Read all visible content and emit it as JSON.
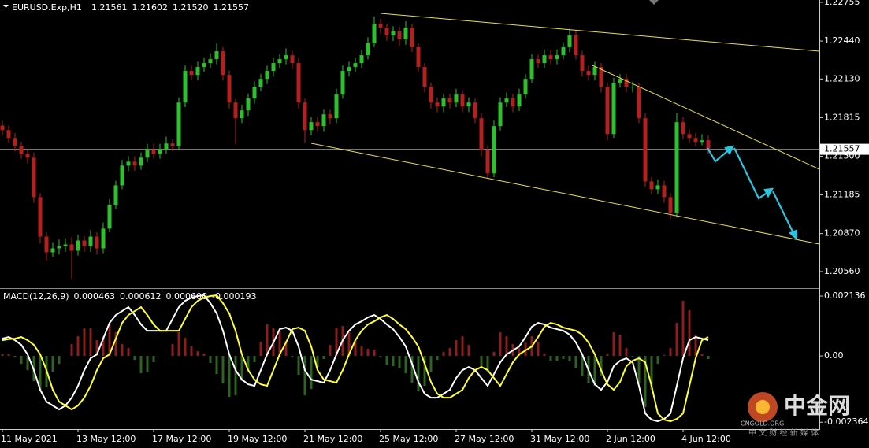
{
  "chart_data": [
    {
      "type": "candlestick",
      "title": "EURUSD.Exp,H1",
      "header_values": [
        "1.21561",
        "1.21602",
        "1.21520",
        "1.21557"
      ],
      "up_color": "#2fbf2f",
      "down_color": "#b32020",
      "current_price": {
        "value": 1.21557,
        "label": "1.21557"
      },
      "ylim": [
        1.20444,
        1.22774
      ],
      "yticks": [
        1.22755,
        {
          "value": 1.2244,
          "label": "1.22440"
        },
        {
          "value": 1.2213,
          "label": "1.22130"
        },
        1.21815,
        {
          "value": 1.215,
          "label": "1.21500"
        },
        1.21185,
        {
          "value": 1.2087,
          "label": "1.20870"
        },
        {
          "value": 1.2056,
          "label": "1.20560"
        }
      ],
      "categories": [
        "11 May 2021",
        null,
        null,
        null,
        null,
        null,
        null,
        null,
        null,
        null,
        null,
        null,
        "13 May 12:00",
        null,
        null,
        null,
        null,
        null,
        null,
        null,
        null,
        null,
        null,
        null,
        "17 May 12:00",
        null,
        null,
        null,
        null,
        null,
        null,
        null,
        null,
        null,
        null,
        null,
        "19 May 12:00",
        null,
        null,
        null,
        null,
        null,
        null,
        null,
        null,
        null,
        null,
        null,
        "21 May 12:00",
        null,
        null,
        null,
        null,
        null,
        null,
        null,
        null,
        null,
        null,
        null,
        "25 May 12:00",
        null,
        null,
        null,
        null,
        null,
        null,
        null,
        null,
        null,
        null,
        null,
        "27 May 12:00",
        null,
        null,
        null,
        null,
        null,
        null,
        null,
        null,
        null,
        null,
        null,
        "31 May 12:00",
        null,
        null,
        null,
        null,
        null,
        null,
        null,
        null,
        null,
        null,
        null,
        "2 Jun 12:00",
        null,
        null,
        null,
        null,
        null,
        null,
        null,
        null,
        null,
        null,
        null,
        "4 Jun 12:00",
        null,
        null,
        null,
        null
      ],
      "open": [
        1.2175,
        1.21713,
        1.21649,
        1.21585,
        1.2152,
        1.21488,
        1.21167,
        1.20845,
        1.20717,
        1.20749,
        1.20768,
        1.20781,
        1.2073,
        1.20813,
        1.20768,
        1.20845,
        1.20749,
        1.2091,
        1.21103,
        1.21263,
        1.21424,
        1.21456,
        1.21424,
        1.21488,
        1.21553,
        1.2152,
        1.21557,
        1.21604,
        1.21585,
        1.21938,
        1.22196,
        1.22163,
        1.22228,
        1.2226,
        1.22292,
        1.22356,
        1.22163,
        1.21938,
        1.2181,
        1.21874,
        1.21971,
        1.22067,
        1.22131,
        1.22196,
        1.2226,
        1.22292,
        1.22324,
        1.2226,
        1.21938,
        1.21713,
        1.21778,
        1.21746,
        1.21842,
        1.2181,
        1.22003,
        1.22196,
        1.22228,
        1.2226,
        1.22324,
        1.22421,
        1.22581,
        1.22549,
        1.22485,
        1.22517,
        1.22453,
        1.22549,
        1.22389,
        1.22228,
        1.22067,
        1.21938,
        1.21906,
        1.21971,
        1.21938,
        1.22003,
        1.21906,
        1.21938,
        1.2181,
        1.21553,
        1.2136,
        1.21746,
        1.21938,
        1.21971,
        1.21906,
        1.22003,
        1.22131,
        1.22292,
        1.2226,
        1.22324,
        1.22292,
        1.22324,
        1.22389,
        1.22485,
        1.22324,
        1.22196,
        1.22163,
        1.22228,
        1.22067,
        1.21681,
        1.22099,
        1.22131,
        1.22067,
        1.22067,
        1.2181,
        1.21295,
        1.21231,
        1.21263,
        1.21167,
        1.21038,
        1.21778,
        1.21681,
        1.21649,
        1.21617,
        1.2163
      ],
      "high": [
        1.2179,
        1.2175,
        1.2169,
        1.2162,
        1.2156,
        1.2153,
        1.212,
        1.2088,
        1.208,
        1.2082,
        1.2083,
        1.2084,
        1.2086,
        1.2085,
        1.209,
        1.2088,
        1.2096,
        1.2115,
        1.213,
        1.2147,
        1.215,
        1.215,
        1.2153,
        1.216,
        1.216,
        1.216,
        1.2166,
        1.2164,
        1.2198,
        1.2224,
        1.2224,
        1.2227,
        1.223,
        1.2234,
        1.2242,
        1.2239,
        1.222,
        1.2197,
        1.2192,
        1.2201,
        1.2211,
        1.2217,
        1.2224,
        1.223,
        1.2233,
        1.2238,
        1.2236,
        1.223,
        1.2197,
        1.2182,
        1.2182,
        1.2188,
        1.2188,
        1.2205,
        1.2224,
        1.2227,
        1.223,
        1.2237,
        1.2247,
        1.2264,
        1.2262,
        1.2258,
        1.2256,
        1.2256,
        1.226,
        1.2258,
        1.2242,
        1.2226,
        1.221,
        1.2198,
        1.2201,
        1.2201,
        1.2205,
        1.2204,
        1.2198,
        1.2197,
        1.2185,
        1.2159,
        1.2179,
        1.2198,
        1.2202,
        1.2201,
        1.2205,
        1.2217,
        1.2233,
        1.2233,
        1.2237,
        1.2237,
        1.2237,
        1.2243,
        1.2254,
        1.2252,
        1.2236,
        1.2224,
        1.2227,
        1.2226,
        1.221,
        1.2214,
        1.2217,
        1.2217,
        1.2211,
        1.221,
        1.2185,
        1.2133,
        1.2131,
        1.213,
        1.212,
        1.2185,
        1.2182,
        1.2172,
        1.2169,
        1.2168,
        1.2167
      ],
      "low": [
        1.2167,
        1.2161,
        1.2154,
        1.2148,
        1.2144,
        1.2112,
        1.2079,
        1.2065,
        1.2068,
        1.207,
        1.2072,
        1.205,
        1.2069,
        1.2072,
        1.2072,
        1.207,
        1.2071,
        1.2088,
        1.2107,
        1.2123,
        1.2138,
        1.2138,
        1.2139,
        1.2145,
        1.2148,
        1.2148,
        1.2152,
        1.2154,
        1.2155,
        1.219,
        1.2212,
        1.2212,
        1.2219,
        1.2222,
        1.2225,
        1.2212,
        1.2189,
        1.216,
        1.2177,
        1.2183,
        1.2193,
        1.2203,
        1.2209,
        1.2215,
        1.2222,
        1.2225,
        1.2221,
        1.2189,
        1.2161,
        1.2167,
        1.217,
        1.217,
        1.2176,
        1.2177,
        1.2197,
        1.2215,
        1.2219,
        1.2222,
        1.2229,
        1.2239,
        1.225,
        1.2244,
        1.2244,
        1.224,
        1.2241,
        1.2235,
        1.2219,
        1.2202,
        1.2189,
        1.2186,
        1.2186,
        1.2189,
        1.219,
        1.2186,
        1.2186,
        1.2177,
        1.215,
        1.2132,
        1.2133,
        1.2171,
        1.219,
        1.2186,
        1.2187,
        1.2197,
        1.221,
        1.2222,
        1.2222,
        1.2225,
        1.2225,
        1.2229,
        1.2235,
        1.2229,
        1.2215,
        1.2212,
        1.2212,
        1.2202,
        1.2163,
        1.2165,
        1.2206,
        1.2202,
        1.2202,
        1.2177,
        1.2125,
        1.2119,
        1.2119,
        1.2112,
        1.2099,
        1.21,
        1.2164,
        1.2161,
        1.2158,
        1.2159,
        1.2152
      ],
      "close": [
        1.21713,
        1.21649,
        1.21585,
        1.2152,
        1.21488,
        1.21167,
        1.20845,
        1.20717,
        1.20749,
        1.20768,
        1.20781,
        1.2073,
        1.20813,
        1.20768,
        1.20845,
        1.20749,
        1.2091,
        1.21103,
        1.21263,
        1.21424,
        1.21456,
        1.21424,
        1.21488,
        1.21553,
        1.2152,
        1.21557,
        1.21604,
        1.21585,
        1.21938,
        1.22196,
        1.22163,
        1.22228,
        1.2226,
        1.22292,
        1.22356,
        1.22163,
        1.21938,
        1.2181,
        1.21874,
        1.21971,
        1.22067,
        1.22131,
        1.22196,
        1.2226,
        1.22292,
        1.22324,
        1.2226,
        1.21938,
        1.21713,
        1.21778,
        1.21746,
        1.21842,
        1.2181,
        1.22003,
        1.22196,
        1.22228,
        1.2226,
        1.22324,
        1.22421,
        1.22581,
        1.22549,
        1.22485,
        1.22517,
        1.22453,
        1.22549,
        1.22389,
        1.22228,
        1.22067,
        1.21938,
        1.21906,
        1.21971,
        1.21938,
        1.22003,
        1.21906,
        1.21938,
        1.2181,
        1.21553,
        1.2136,
        1.21746,
        1.21938,
        1.21971,
        1.21906,
        1.22003,
        1.22131,
        1.22292,
        1.2226,
        1.22324,
        1.22292,
        1.22324,
        1.22389,
        1.22485,
        1.22324,
        1.22196,
        1.22163,
        1.22228,
        1.22067,
        1.21681,
        1.22099,
        1.22131,
        1.22067,
        1.22067,
        1.2181,
        1.21295,
        1.21231,
        1.21263,
        1.21167,
        1.21038,
        1.21778,
        1.21681,
        1.21649,
        1.21617,
        1.2163,
        1.21557
      ]
    },
    {
      "type": "macd",
      "title": "MACD(12,26,9)",
      "legend_values": [
        "0.000463",
        "0.000612",
        "0.000600",
        "-0.000193"
      ],
      "ylim": [
        -0.00261,
        0.00239
      ],
      "yticks": [
        0.002136,
        {
          "value": 0,
          "label": "0.00"
        },
        -0.002364
      ],
      "histogram": {
        "up_color": "#8e1d1d",
        "down_color": "#2c6420",
        "values": [
          5.8e-05,
          7.4e-05,
          -5.6e-05,
          -0.000281,
          -0.000506,
          -0.000899,
          -0.001264,
          -0.001124,
          -0.000562,
          -0.000281,
          0,
          0.000422,
          0.000702,
          0.000983,
          0.000984,
          0.000562,
          0.000702,
          0.001124,
          0.000843,
          0.000422,
          0.000281,
          -0.000141,
          -0.000618,
          -0.000562,
          -0.000225,
          0,
          0,
          0.000422,
          0.000843,
          0.000646,
          0.000337,
          0.000169,
          8.5e-05,
          -0.000253,
          -0.000647,
          -0.000984,
          -0.001461,
          -0.001405,
          -0.000899,
          -0.000506,
          -0.000225,
          0.000506,
          0.001124,
          0.000984,
          0.000899,
          0.000534,
          -5.6e-05,
          -0.000675,
          -0.001405,
          -0.00118,
          -0.000393,
          -0.000112,
          0.000393,
          0.001011,
          0.001068,
          0.000843,
          0.000562,
          0.000337,
          0.000253,
          0.000225,
          -5.6e-05,
          -0.000337,
          -0.000366,
          -0.00045,
          -0.000618,
          -0.000955,
          -0.001264,
          -0.001068,
          -0.000562,
          -0.00014,
          0.00014,
          0.000281,
          0.000562,
          0.000702,
          0.000394,
          0,
          -0.000394,
          -0.000562,
          0.000141,
          0.000843,
          0.000702,
          0.000422,
          0.000281,
          0.000477,
          0.000703,
          0.000506,
          8.4e-05,
          -0.000168,
          -0.000169,
          -0.000113,
          -0.000196,
          -0.000421,
          -0.000703,
          -0.000984,
          -0.001068,
          -0.000702,
          8.5e-05,
          0.000843,
          0.000758,
          0.000281,
          -5.6e-05,
          -0.000984,
          -0.001826,
          -0.001208,
          -0.000281,
          2.8e-05,
          0.000281,
          0.00118,
          0.001967,
          0.00163,
          0.000758,
          5.6e-05,
          -0.000112
        ]
      },
      "series": [
        {
          "color": "#ffffff",
          "values": [
            0.000618,
            0.000674,
            0.000562,
            0.000393,
            5.6e-05,
            -0.000506,
            -0.001208,
            -0.00163,
            -0.00177,
            -0.001911,
            -0.00177,
            -0.001489,
            -0.001068,
            -0.000506,
            -8.4e-05,
            5.6e-05,
            0.000618,
            0.00118,
            0.001461,
            0.001602,
            0.001742,
            0.001461,
            0.001124,
            0.000899,
            0.000899,
            0.000899,
            0.000899,
            0.001321,
            0.001742,
            0.001967,
            0.002079,
            0.002136,
            0.002164,
            0.001883,
            0.001517,
            0.000899,
            5.6e-05,
            -0.000506,
            -0.000843,
            -0.001012,
            -0.001068,
            -0.000506,
            5.6e-05,
            0.000478,
            0.000955,
            0.001012,
            0.000899,
            0.000337,
            -0.000506,
            -0.000843,
            -0.000899,
            -0.000955,
            -0.000506,
            5.6e-05,
            0.000562,
            0.000899,
            0.001124,
            0.001236,
            0.001377,
            0.001461,
            0.001321,
            0.001124,
            0.000955,
            0.000674,
            0.000337,
            -0.000281,
            -0.000927,
            -0.001349,
            -0.001489,
            -0.001489,
            -0.001349,
            -0.001208,
            -0.000787,
            -0.000506,
            -0.000393,
            -0.000506,
            -0.000787,
            -0.001068,
            -0.000646,
            -0.000225,
            5.6e-05,
            0.000197,
            0.000337,
            0.000674,
            0.00104,
            0.00118,
            0.001124,
            0.001012,
            0.000955,
            0.000899,
            0.000759,
            0.000478,
            5.6e-05,
            -0.000506,
            -0.001012,
            -0.001208,
            -0.000927,
            -0.000365,
            -0.000169,
            -8.4e-05,
            -0.000225,
            -0.001068,
            -0.002051,
            -0.002276,
            -0.002332,
            -0.002248,
            -0.002051,
            -0.001068,
            -8.4e-05,
            0.000562,
            0.000674,
            0.000618,
            0.000562
          ]
        },
        {
          "color": "#ffff33",
          "values": [
            0.00056,
            0.0006,
            0.000618,
            0.000674,
            0.000562,
            0.000393,
            5.6e-05,
            -0.000506,
            -0.001208,
            -0.00163,
            -0.00177,
            -0.001911,
            -0.00177,
            -0.001489,
            -0.001068,
            -0.000506,
            -8.4e-05,
            5.6e-05,
            0.000618,
            0.00118,
            0.001461,
            0.001602,
            0.001742,
            0.001461,
            0.001124,
            0.000899,
            0.000899,
            0.000899,
            0.000899,
            0.001321,
            0.001742,
            0.001967,
            0.002079,
            0.002136,
            0.002164,
            0.001883,
            0.001517,
            0.000899,
            5.6e-05,
            -0.000506,
            -0.000843,
            -0.001012,
            -0.001068,
            -0.000506,
            5.6e-05,
            0.000478,
            0.000955,
            0.001012,
            0.000899,
            0.000337,
            -0.000506,
            -0.000843,
            -0.000899,
            -0.000955,
            -0.000506,
            5.6e-05,
            0.000562,
            0.000899,
            0.001124,
            0.001236,
            0.001377,
            0.001461,
            0.001321,
            0.001124,
            0.000955,
            0.000674,
            0.000337,
            -0.000281,
            -0.000927,
            -0.001349,
            -0.001489,
            -0.001489,
            -0.001349,
            -0.001208,
            -0.000787,
            -0.000506,
            -0.000393,
            -0.000506,
            -0.000787,
            -0.001068,
            -0.000646,
            -0.000225,
            5.6e-05,
            0.000197,
            0.000337,
            0.000674,
            0.00104,
            0.00118,
            0.001124,
            0.001012,
            0.000955,
            0.000899,
            0.000759,
            0.000478,
            5.6e-05,
            -0.000506,
            -0.001012,
            -0.001208,
            -0.000927,
            -0.000365,
            -0.000169,
            -8.4e-05,
            -0.000225,
            -0.001068,
            -0.002051,
            -0.002276,
            -0.002332,
            -0.002248,
            -0.002051,
            -0.001068,
            -8.4e-05,
            0.000562,
            0.000674
          ]
        }
      ]
    }
  ],
  "watermark": {
    "brand": "中金网",
    "site": "CNGOLD.ORG",
    "tagline": "中 文 财 经 新 媒 体"
  }
}
